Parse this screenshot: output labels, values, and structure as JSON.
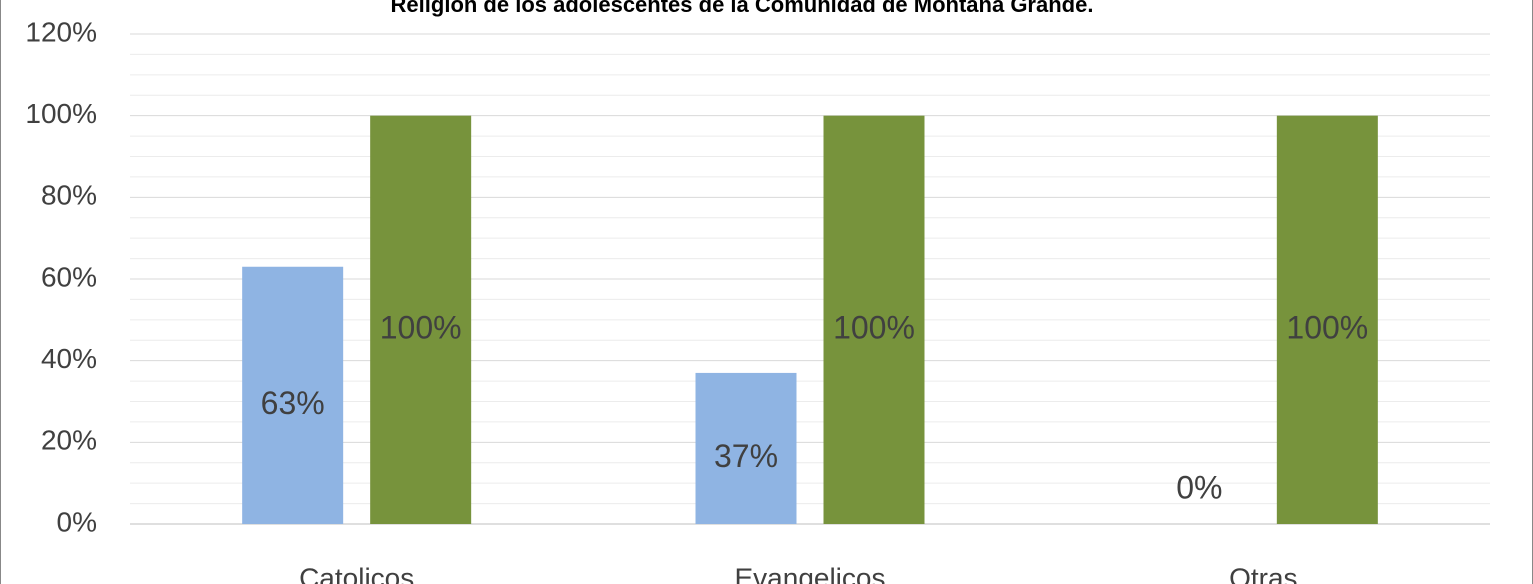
{
  "chart_data": {
    "type": "bar",
    "title": "Religión de los adolescentes de la Comunidad de Montaña Grande.",
    "categories": [
      "Catolicos",
      "Evangelicos",
      "Otras"
    ],
    "series": [
      {
        "color": "#8fb4e3",
        "values": [
          63,
          37,
          0
        ],
        "value_labels": [
          "63%",
          "37%",
          "0%"
        ]
      },
      {
        "color": "#77933c",
        "values": [
          100,
          100,
          100
        ],
        "value_labels": [
          "100%",
          "100%",
          "100%"
        ]
      }
    ],
    "ylim": [
      0,
      120
    ],
    "yticks": [
      {
        "value": 0,
        "label": "0%"
      },
      {
        "value": 20,
        "label": "20%"
      },
      {
        "value": 40,
        "label": "40%"
      },
      {
        "value": 60,
        "label": "60%"
      },
      {
        "value": 80,
        "label": "80%"
      },
      {
        "value": 100,
        "label": "100%"
      },
      {
        "value": 120,
        "label": "120%"
      }
    ],
    "grid": true,
    "minor_grid": true
  }
}
